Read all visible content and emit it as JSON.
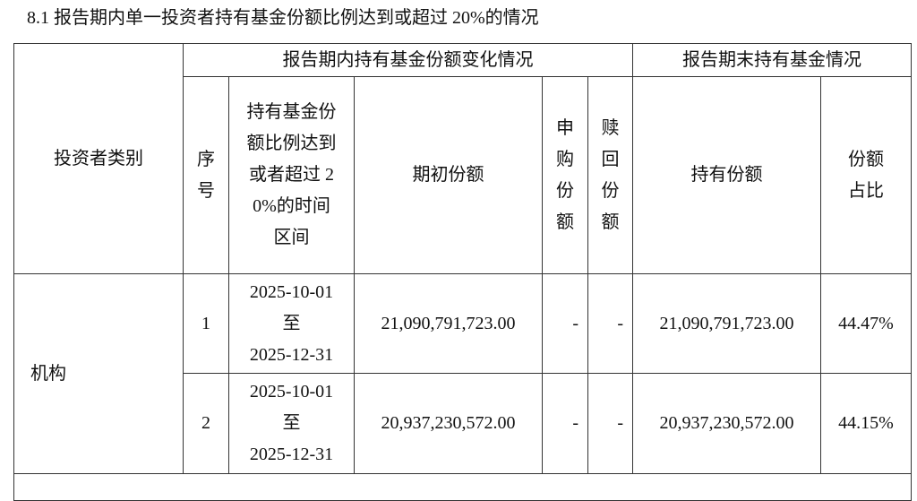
{
  "title": "8.1  报告期内单一投资者持有基金份额比例达到或超过 20%的情况",
  "table": {
    "group_headers": {
      "change": "报告期内持有基金份额变化情况",
      "end": "报告期末持有基金情况"
    },
    "headers": {
      "investor_type": "投资者类别",
      "seq": "序号",
      "interval": "持有基金份额比例达到或者超过 20%的时间区间",
      "initial": "期初份额",
      "subscribe": "申购份额",
      "redeem": "赎回份额",
      "holding": "持有份额",
      "ratio": "份额占比"
    },
    "investor_type": "机构",
    "rows": [
      {
        "seq": "1",
        "start": "2025-10-01",
        "to": "至",
        "end": "2025-12-31",
        "initial": "21,090,791,723.00",
        "subscribe": "-",
        "redeem": "-",
        "holding": "21,090,791,723.00",
        "ratio": "44.47%"
      },
      {
        "seq": "2",
        "start": "2025-10-01",
        "to": "至",
        "end": "2025-12-31",
        "initial": "20,937,230,572.00",
        "subscribe": "-",
        "redeem": "-",
        "holding": "20,937,230,572.00",
        "ratio": "44.15%"
      }
    ]
  }
}
